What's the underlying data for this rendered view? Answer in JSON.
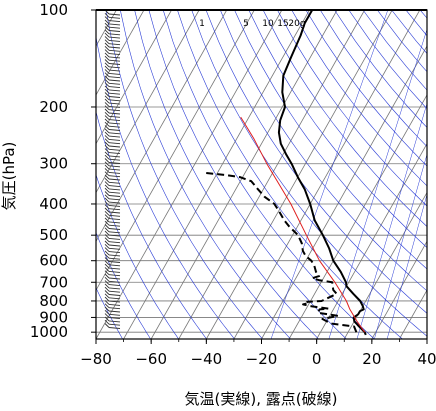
{
  "chart_data": {
    "type": "line",
    "subtype": "skew-T log-P aerological diagram",
    "xlabel": "気温(実線), 露点(破線)",
    "ylabel": "気圧(hPa)",
    "x_ticks": [
      "−80",
      "−60",
      "−40",
      "−20",
      "0",
      "20",
      "40"
    ],
    "x_tick_values": [
      -80,
      -60,
      -40,
      -20,
      0,
      20,
      40
    ],
    "y_ticks": [
      "100",
      "200",
      "300",
      "400",
      "500",
      "600",
      "700",
      "800",
      "900",
      "1000"
    ],
    "y_tick_values": [
      100,
      200,
      300,
      400,
      500,
      600,
      700,
      800,
      900,
      1000
    ],
    "xlim": [
      -80,
      40
    ],
    "ylim": [
      1050,
      100
    ],
    "y_scale": "log",
    "mixing_ratio_labels": [
      "1",
      "5",
      "10",
      "15",
      "20g"
    ],
    "mixing_ratio_values": [
      1,
      5,
      10,
      15,
      20
    ],
    "series": [
      {
        "style": "solid",
        "color": "#000000",
        "p": [
          1020,
          1000,
          950,
          925,
          900,
          880,
          860,
          850,
          830,
          800,
          760,
          720,
          700,
          650,
          600,
          550,
          500,
          450,
          400,
          360,
          330,
          300,
          280,
          260,
          240,
          220,
          200,
          180,
          160,
          140,
          120,
          110,
          100
        ],
        "t": [
          17,
          16,
          12,
          10,
          9,
          10,
          10,
          11,
          10,
          8,
          4,
          0,
          -1,
          -5,
          -10,
          -14,
          -19,
          -25,
          -30,
          -35,
          -40,
          -45,
          -49,
          -53,
          -56,
          -58,
          -59,
          -63,
          -66,
          -67,
          -68,
          -69,
          -69
        ]
      },
      {
        "style": "dashed",
        "color": "#000000",
        "p": [
          1000,
          960,
          940,
          910,
          890,
          870,
          850,
          845,
          830,
          820,
          812,
          805,
          800,
          790,
          760,
          740,
          720,
          700,
          690,
          680,
          670,
          650,
          620,
          600,
          580,
          560,
          530,
          500,
          470,
          450,
          420,
          400,
          380,
          360,
          340,
          330,
          325,
          320
        ],
        "t": [
          13,
          11,
          2,
          -2,
          3,
          -5,
          -5,
          -2,
          -9,
          -12,
          -10,
          -11,
          -6,
          -5,
          -2,
          -4,
          -5,
          -6,
          -11,
          -14,
          -12,
          -14,
          -16,
          -18,
          -21,
          -23,
          -25,
          -28,
          -33,
          -36,
          -40,
          -43,
          -48,
          -52,
          -56,
          -61,
          -67,
          -75
        ]
      },
      {
        "style": "solid",
        "color": "#e02020",
        "p": [
          1000,
          925,
          850,
          800,
          700,
          600,
          500,
          400,
          300,
          250,
          215
        ],
        "t": [
          16,
          11,
          6,
          3,
          -5,
          -15,
          -25,
          -37,
          -54,
          -64,
          -73
        ]
      }
    ],
    "wind_barbs": "column of wind barbs at left edge from 1000 to 100 hPa",
    "grid": true
  }
}
